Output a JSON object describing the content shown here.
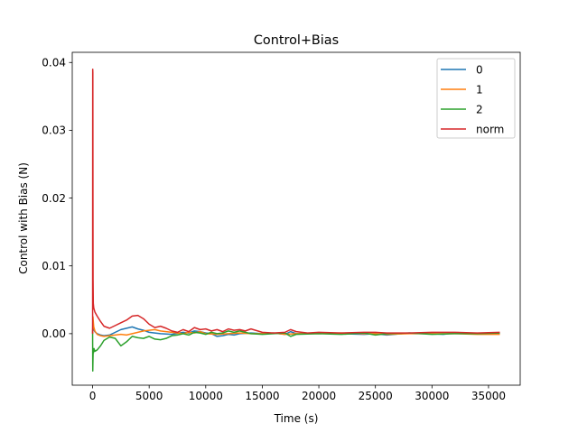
{
  "chart_data": {
    "type": "line",
    "title": "Control+Bias",
    "xlabel": "Time (s)",
    "ylabel": "Control with Bias (N)",
    "xlim": [
      -1800,
      37800
    ],
    "ylim": [
      -0.0076,
      0.0415
    ],
    "xticks": [
      0,
      5000,
      10000,
      15000,
      20000,
      25000,
      30000,
      35000
    ],
    "yticks": [
      0.0,
      0.01,
      0.02,
      0.03,
      0.04
    ],
    "xtick_labels": [
      "0",
      "5000",
      "10000",
      "15000",
      "20000",
      "25000",
      "30000",
      "35000"
    ],
    "ytick_labels": [
      "0.00",
      "0.01",
      "0.02",
      "0.03",
      "0.04"
    ],
    "grid": false,
    "legend_position": "top-right",
    "series": [
      {
        "name": "0",
        "color": "#1f77b4",
        "x": [
          0,
          30,
          60,
          100,
          200,
          400,
          700,
          1000,
          1500,
          2000,
          2500,
          3000,
          3500,
          4000,
          4500,
          5000,
          5500,
          6000,
          7000,
          8000,
          8500,
          9000,
          9500,
          10000,
          10500,
          11000,
          11500,
          12000,
          12500,
          13000,
          14000,
          15000,
          16000,
          17000,
          17500,
          18000,
          20000,
          22000,
          24000,
          25000,
          26000,
          28000,
          30000,
          31000,
          32000,
          34000,
          36000
        ],
        "y": [
          0.0,
          0.0015,
          0.0009,
          0.0006,
          0.0003,
          0.0,
          -0.0002,
          -0.0003,
          -0.0002,
          0.0002,
          0.0006,
          0.0008,
          0.001,
          0.0007,
          0.0005,
          0.0002,
          0.0001,
          0.0,
          -0.0001,
          0.0002,
          0.0001,
          0.0004,
          0.0003,
          0.0001,
          0.0,
          -0.0004,
          -0.0003,
          -0.0001,
          -0.0002,
          0.0,
          0.0001,
          0.0,
          0.0001,
          -0.0001,
          0.0003,
          0.0,
          0.0001,
          0.0,
          -0.0001,
          0.0,
          -0.0002,
          0.0001,
          0.0,
          -0.0001,
          0.0001,
          0.0,
          0.0
        ]
      },
      {
        "name": "1",
        "color": "#ff7f0e",
        "x": [
          0,
          30,
          60,
          100,
          200,
          400,
          700,
          1000,
          1500,
          2000,
          2500,
          3000,
          3500,
          4000,
          4500,
          5000,
          5500,
          6000,
          7000,
          8000,
          8500,
          9000,
          9500,
          10000,
          11000,
          12000,
          13000,
          14000,
          15000,
          16000,
          17000,
          18000,
          20000,
          22000,
          24000,
          25000,
          26000,
          28000,
          30000,
          32000,
          34000,
          36000
        ],
        "y": [
          0.0,
          0.0025,
          0.0018,
          0.001,
          0.0004,
          -0.0001,
          -0.0003,
          -0.0004,
          -0.0003,
          -0.0002,
          -0.0001,
          -0.0002,
          0.0,
          0.0002,
          0.0004,
          0.0005,
          0.0006,
          0.0004,
          0.0002,
          0.0,
          0.0002,
          0.0001,
          0.0003,
          0.0,
          -0.0001,
          0.0,
          0.0001,
          0.0,
          0.0,
          0.0001,
          -0.0001,
          0.0,
          0.0,
          0.0001,
          0.0,
          0.0,
          -0.0001,
          0.0,
          0.0,
          0.0,
          -0.0001,
          -0.0001
        ]
      },
      {
        "name": "2",
        "color": "#2ca02c",
        "x": [
          0,
          15,
          30,
          50,
          80,
          120,
          200,
          400,
          700,
          1000,
          1500,
          2000,
          2500,
          3000,
          3500,
          4000,
          4500,
          5000,
          5500,
          6000,
          6500,
          7000,
          7500,
          8000,
          8500,
          9000,
          9500,
          10000,
          10500,
          11000,
          11500,
          12000,
          12500,
          13000,
          14000,
          15000,
          16000,
          17000,
          17500,
          18000,
          20000,
          22000,
          24000,
          25000,
          26000,
          28000,
          30000,
          32000,
          34000,
          36000
        ],
        "y": [
          0.0,
          -0.0055,
          -0.004,
          -0.0025,
          -0.0028,
          -0.0022,
          -0.0026,
          -0.0024,
          -0.0018,
          -0.001,
          -0.0005,
          -0.0007,
          -0.0018,
          -0.0012,
          -0.0004,
          -0.0006,
          -0.0007,
          -0.0004,
          -0.0008,
          -0.0009,
          -0.0007,
          -0.0003,
          -0.0002,
          0.0,
          -0.0002,
          0.0002,
          0.0001,
          -0.0001,
          0.0002,
          0.0,
          0.0001,
          0.0004,
          0.0002,
          0.0004,
          0.0,
          -0.0001,
          0.0,
          0.0001,
          -0.0004,
          -0.0001,
          0.0,
          -0.0001,
          0.0001,
          -0.0002,
          0.0,
          0.0001,
          -0.0001,
          0.0,
          0.0,
          0.0001
        ]
      },
      {
        "name": "norm",
        "color": "#d62728",
        "x": [
          0,
          10,
          20,
          30,
          40,
          60,
          100,
          200,
          400,
          700,
          1000,
          1500,
          2000,
          2500,
          3000,
          3500,
          4000,
          4500,
          5000,
          5500,
          6000,
          6500,
          7000,
          7500,
          8000,
          8500,
          9000,
          9500,
          10000,
          10500,
          11000,
          11500,
          12000,
          12500,
          13000,
          13500,
          14000,
          15000,
          16000,
          17000,
          17500,
          18000,
          19000,
          20000,
          22000,
          24000,
          25000,
          26000,
          28000,
          30000,
          32000,
          34000,
          36000
        ],
        "y": [
          0.0,
          0.039,
          0.0385,
          0.02,
          0.008,
          0.0045,
          0.0038,
          0.0032,
          0.0026,
          0.0018,
          0.0011,
          0.0008,
          0.0012,
          0.0016,
          0.002,
          0.0026,
          0.0027,
          0.0022,
          0.0014,
          0.0009,
          0.0011,
          0.0008,
          0.0004,
          0.0002,
          0.0006,
          0.0003,
          0.0009,
          0.0006,
          0.0007,
          0.0004,
          0.0006,
          0.0003,
          0.0007,
          0.0005,
          0.0006,
          0.0004,
          0.0007,
          0.0002,
          0.0001,
          0.0002,
          0.0006,
          0.0003,
          0.0001,
          0.0002,
          0.0001,
          0.0002,
          0.0002,
          0.0001,
          0.0001,
          0.0002,
          0.0002,
          0.0001,
          0.0002
        ]
      }
    ]
  }
}
